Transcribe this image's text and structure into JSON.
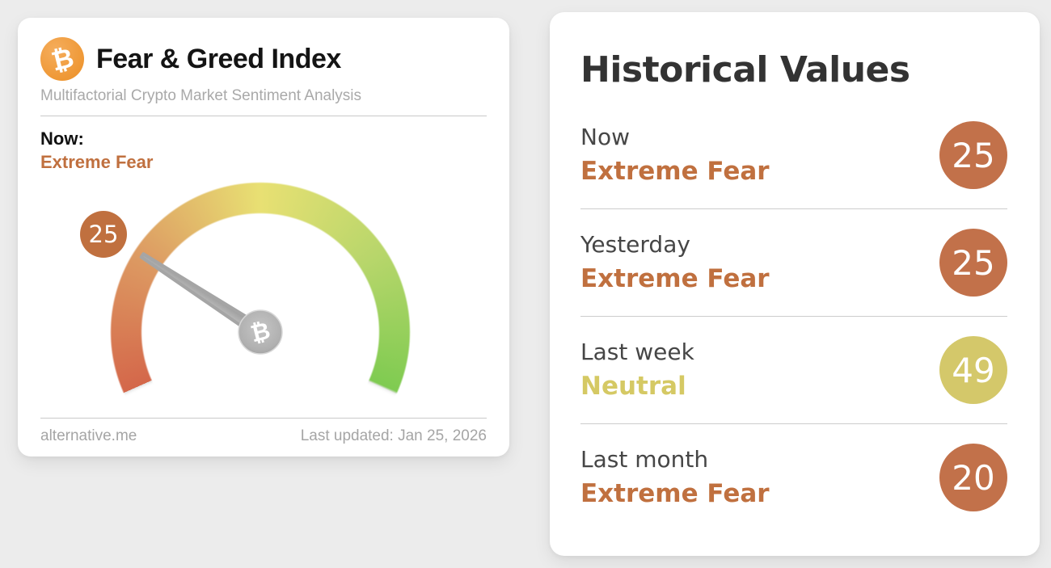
{
  "colors": {
    "page_background": "#ececec",
    "card_background": "#ffffff",
    "extreme_fear": "#c0703f",
    "extreme_fear_badge": "#c2714a",
    "neutral": "#d5c964",
    "neutral_badge": "#d4c86a",
    "bitcoin_orange": "#ec8f25",
    "needle_gray": "#a8a8a8",
    "gauge_gradient": [
      "#d4674a",
      "#dd9c63",
      "#e8e073",
      "#b8d66b",
      "#7fcb51"
    ]
  },
  "gauge_card": {
    "logo_symbol": "₿",
    "title": "Fear & Greed Index",
    "subtitle": "Multifactorial Crypto Market Sentiment Analysis",
    "now_label": "Now:",
    "now_sentiment": "Extreme Fear",
    "now_sentiment_color": "#c0703f",
    "gauge": {
      "value": 25,
      "min": 0,
      "max": 100,
      "badge_color": "#c0703f",
      "hub_symbol": "₿"
    },
    "footer": {
      "source": "alternative.me",
      "last_updated": "Last updated: Jan 25, 2026"
    }
  },
  "history_card": {
    "title": "Historical Values",
    "rows": [
      {
        "label": "Now",
        "sentiment": "Extreme Fear",
        "value": "25",
        "sentiment_color": "#c0703f",
        "badge_color": "#c2714a"
      },
      {
        "label": "Yesterday",
        "sentiment": "Extreme Fear",
        "value": "25",
        "sentiment_color": "#c0703f",
        "badge_color": "#c2714a"
      },
      {
        "label": "Last week",
        "sentiment": "Neutral",
        "value": "49",
        "sentiment_color": "#d5c964",
        "badge_color": "#d4c86a"
      },
      {
        "label": "Last month",
        "sentiment": "Extreme Fear",
        "value": "20",
        "sentiment_color": "#c0703f",
        "badge_color": "#c2714a"
      }
    ]
  },
  "chart_data": {
    "type": "gauge",
    "title": "Fear & Greed Index",
    "subtitle": "Multifactorial Crypto Market Sentiment Analysis",
    "value": 25,
    "range": [
      0,
      100
    ],
    "current_label": "Extreme Fear",
    "scale_colors": [
      "#d4674a",
      "#dd9c63",
      "#e8e073",
      "#b8d66b",
      "#7fcb51"
    ],
    "arc_sweep_degrees": 228,
    "historical": [
      {
        "period": "Now",
        "sentiment": "Extreme Fear",
        "value": 25
      },
      {
        "period": "Yesterday",
        "sentiment": "Extreme Fear",
        "value": 25
      },
      {
        "period": "Last week",
        "sentiment": "Neutral",
        "value": 49
      },
      {
        "period": "Last month",
        "sentiment": "Extreme Fear",
        "value": 20
      }
    ]
  }
}
